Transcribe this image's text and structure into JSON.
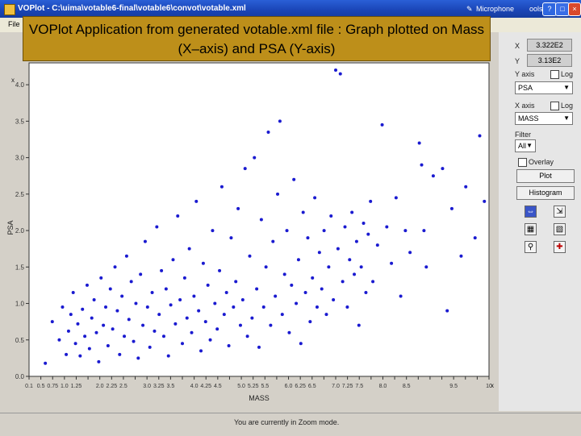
{
  "window": {
    "title": "VOPlot - C:\\uima\\votable6-final\\votable6\\convot\\votable.xml",
    "microphone_label": "Microphone",
    "tools_label": "ools"
  },
  "menu": {
    "file_label": "File"
  },
  "overlay": {
    "text": "VOPlot Application from generated votable.xml file : Graph plotted on Mass (X–axis) and PSA (Y-axis)"
  },
  "side_panel": {
    "x_label": "X",
    "x_value": "3.322E2",
    "y_label": "Y",
    "y_value": "3.13E2",
    "y_axis_label": "Y axis",
    "y_log_label": "Log",
    "y_axis_selected": "PSA",
    "x_axis_label": "X axis",
    "x_log_label": "Log",
    "x_axis_selected": "MASS",
    "filter_label": "Filter",
    "filter_selected": "All",
    "overlay_label": "Overlay",
    "plot_button": "Plot",
    "histogram_button": "Histogram"
  },
  "status": {
    "text": "You are currently in Zoom mode."
  },
  "chart_data": {
    "type": "scatter",
    "title": "",
    "xlabel": "MASS",
    "ylabel": "PSA",
    "x_multiplier_label": "x10",
    "x_multiplier_exp": "2",
    "y_multiplier_label": "x",
    "x_ticks": [
      "0.1",
      "0.5",
      "0.75",
      "1.0",
      "1.25",
      "1.5",
      "1.75",
      "2.0",
      "2.25",
      "2.5",
      "2.75",
      "3.0",
      "3.25",
      "3.5",
      "3.75",
      "4.0",
      "4.25",
      "4.5",
      "4.75",
      "5.0",
      "5.25",
      "5.5",
      "5.75",
      "6.0",
      "6.25",
      "6.5",
      "6.75",
      "7.0",
      "7.25",
      "7.5",
      "7.75",
      "8.0",
      "8.25",
      "8.5",
      "8.75",
      "9.0",
      "9.25",
      "9.5",
      "9.75",
      "10"
    ],
    "x_ticks_visible_text": [
      "0.1",
      "0.5",
      "0.75",
      "1.0",
      "1.25",
      "",
      "2.0",
      "2.25",
      "2.5",
      "",
      "3.0",
      "3.25",
      "3.5",
      "",
      "4.0",
      "4.25",
      "4.5",
      "",
      "5.0",
      "5.25",
      "5.5",
      "",
      "6.0",
      "6.25",
      "6.5",
      "",
      "7.0",
      "7.25",
      "7.5",
      "",
      "8.0",
      "",
      "8.5",
      "",
      "",
      "",
      "9.5",
      "",
      "",
      "10"
    ],
    "y_ticks": [
      "0.0",
      "0.5",
      "1.0",
      "1.5",
      "2.0",
      "2.5",
      "3.0",
      "3.5",
      "4.0"
    ],
    "xlim": [
      0.1,
      10
    ],
    "ylim": [
      0.0,
      4.3
    ],
    "grid": false,
    "legend": "none",
    "color": "#1a1ad0",
    "points": [
      [
        0.45,
        0.18
      ],
      [
        0.6,
        0.75
      ],
      [
        0.75,
        0.5
      ],
      [
        0.82,
        0.95
      ],
      [
        0.9,
        0.3
      ],
      [
        0.95,
        0.62
      ],
      [
        1.0,
        0.85
      ],
      [
        1.05,
        1.15
      ],
      [
        1.1,
        0.45
      ],
      [
        1.15,
        0.72
      ],
      [
        1.2,
        0.28
      ],
      [
        1.25,
        0.92
      ],
      [
        1.3,
        0.55
      ],
      [
        1.35,
        1.25
      ],
      [
        1.4,
        0.38
      ],
      [
        1.45,
        0.8
      ],
      [
        1.5,
        1.05
      ],
      [
        1.55,
        0.6
      ],
      [
        1.6,
        0.2
      ],
      [
        1.65,
        1.35
      ],
      [
        1.7,
        0.7
      ],
      [
        1.75,
        0.95
      ],
      [
        1.8,
        0.42
      ],
      [
        1.85,
        1.2
      ],
      [
        1.9,
        0.65
      ],
      [
        1.95,
        1.5
      ],
      [
        2.0,
        0.9
      ],
      [
        2.05,
        0.3
      ],
      [
        2.1,
        1.1
      ],
      [
        2.15,
        0.55
      ],
      [
        2.2,
        1.65
      ],
      [
        2.25,
        0.78
      ],
      [
        2.3,
        1.3
      ],
      [
        2.35,
        0.48
      ],
      [
        2.4,
        1.0
      ],
      [
        2.45,
        0.25
      ],
      [
        2.5,
        1.4
      ],
      [
        2.55,
        0.7
      ],
      [
        2.6,
        1.85
      ],
      [
        2.65,
        0.95
      ],
      [
        2.7,
        0.4
      ],
      [
        2.75,
        1.15
      ],
      [
        2.8,
        0.62
      ],
      [
        2.85,
        2.05
      ],
      [
        2.9,
        0.85
      ],
      [
        2.95,
        1.45
      ],
      [
        3.0,
        0.55
      ],
      [
        3.05,
        1.2
      ],
      [
        3.1,
        0.28
      ],
      [
        3.15,
        0.98
      ],
      [
        3.2,
        1.6
      ],
      [
        3.25,
        0.72
      ],
      [
        3.3,
        2.2
      ],
      [
        3.35,
        1.05
      ],
      [
        3.4,
        0.45
      ],
      [
        3.45,
        1.35
      ],
      [
        3.5,
        0.8
      ],
      [
        3.55,
        1.75
      ],
      [
        3.6,
        0.6
      ],
      [
        3.65,
        1.1
      ],
      [
        3.7,
        2.4
      ],
      [
        3.75,
        0.9
      ],
      [
        3.8,
        0.35
      ],
      [
        3.85,
        1.55
      ],
      [
        3.9,
        0.75
      ],
      [
        3.95,
        1.25
      ],
      [
        4.0,
        0.5
      ],
      [
        4.05,
        2.0
      ],
      [
        4.1,
        1.0
      ],
      [
        4.15,
        0.65
      ],
      [
        4.2,
        1.45
      ],
      [
        4.25,
        2.6
      ],
      [
        4.3,
        0.85
      ],
      [
        4.35,
        1.15
      ],
      [
        4.4,
        0.42
      ],
      [
        4.45,
        1.9
      ],
      [
        4.5,
        0.95
      ],
      [
        4.55,
        1.3
      ],
      [
        4.6,
        2.3
      ],
      [
        4.65,
        0.7
      ],
      [
        4.7,
        1.05
      ],
      [
        4.75,
        2.85
      ],
      [
        4.8,
        0.55
      ],
      [
        4.85,
        1.65
      ],
      [
        4.9,
        0.8
      ],
      [
        4.95,
        3.0
      ],
      [
        5.0,
        1.2
      ],
      [
        5.05,
        0.4
      ],
      [
        5.1,
        2.15
      ],
      [
        5.15,
        0.95
      ],
      [
        5.2,
        1.5
      ],
      [
        5.25,
        3.35
      ],
      [
        5.3,
        0.7
      ],
      [
        5.35,
        1.85
      ],
      [
        5.4,
        1.1
      ],
      [
        5.45,
        2.5
      ],
      [
        5.5,
        3.5
      ],
      [
        5.55,
        0.85
      ],
      [
        5.6,
        1.4
      ],
      [
        5.65,
        2.0
      ],
      [
        5.7,
        0.6
      ],
      [
        5.75,
        1.25
      ],
      [
        5.8,
        2.7
      ],
      [
        5.85,
        1.0
      ],
      [
        5.9,
        1.6
      ],
      [
        5.95,
        0.45
      ],
      [
        6.0,
        2.25
      ],
      [
        6.05,
        1.15
      ],
      [
        6.1,
        1.9
      ],
      [
        6.15,
        0.75
      ],
      [
        6.2,
        1.35
      ],
      [
        6.25,
        2.45
      ],
      [
        6.3,
        0.95
      ],
      [
        6.35,
        1.7
      ],
      [
        6.4,
        1.2
      ],
      [
        6.45,
        2.0
      ],
      [
        6.5,
        0.85
      ],
      [
        6.55,
        1.5
      ],
      [
        6.6,
        2.2
      ],
      [
        6.65,
        1.05
      ],
      [
        6.7,
        4.2
      ],
      [
        6.75,
        1.75
      ],
      [
        6.8,
        4.15
      ],
      [
        6.85,
        1.3
      ],
      [
        6.9,
        2.05
      ],
      [
        6.95,
        0.95
      ],
      [
        7.0,
        1.6
      ],
      [
        7.05,
        2.25
      ],
      [
        7.1,
        1.4
      ],
      [
        7.15,
        1.85
      ],
      [
        7.2,
        0.7
      ],
      [
        7.25,
        1.5
      ],
      [
        7.3,
        2.1
      ],
      [
        7.35,
        1.15
      ],
      [
        7.4,
        1.95
      ],
      [
        7.45,
        2.4
      ],
      [
        7.5,
        1.3
      ],
      [
        7.6,
        1.8
      ],
      [
        7.7,
        3.45
      ],
      [
        7.8,
        2.05
      ],
      [
        7.9,
        1.55
      ],
      [
        8.0,
        2.45
      ],
      [
        8.1,
        1.1
      ],
      [
        8.2,
        2.0
      ],
      [
        8.3,
        1.7
      ],
      [
        8.5,
        3.2
      ],
      [
        8.55,
        2.9
      ],
      [
        8.6,
        2.0
      ],
      [
        8.65,
        1.5
      ],
      [
        8.8,
        2.75
      ],
      [
        9.0,
        2.85
      ],
      [
        9.1,
        0.9
      ],
      [
        9.2,
        2.3
      ],
      [
        9.4,
        1.65
      ],
      [
        9.5,
        2.6
      ],
      [
        9.7,
        1.9
      ],
      [
        9.8,
        3.3
      ],
      [
        9.9,
        2.4
      ]
    ]
  }
}
